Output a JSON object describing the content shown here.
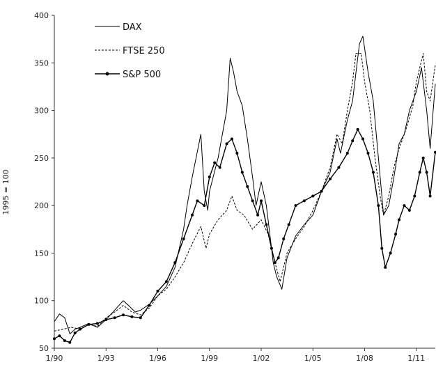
{
  "chart_data": {
    "type": "line",
    "title": "",
    "xlabel": "",
    "ylabel": "1995 = 100",
    "xlim": [
      1990.0,
      2012.1
    ],
    "ylim": [
      50,
      400
    ],
    "x_ticks": [
      1990,
      1993,
      1996,
      1999,
      2002,
      2005,
      2008,
      2011
    ],
    "x_tick_labels": [
      "1/90",
      "1/93",
      "1/96",
      "1/99",
      "1/02",
      "1/05",
      "1/08",
      "1/11"
    ],
    "y_ticks": [
      50,
      100,
      150,
      200,
      250,
      300,
      350,
      400
    ],
    "grid": false,
    "legend_position": "top-left",
    "series": [
      {
        "name": "DAX",
        "style": "solid",
        "color": "#000000",
        "x": [
          1990.0,
          1990.3,
          1990.6,
          1990.9,
          1991.2,
          1991.5,
          1992.0,
          1992.5,
          1993.0,
          1993.5,
          1994.0,
          1994.3,
          1994.7,
          1995.0,
          1995.5,
          1996.0,
          1996.5,
          1997.0,
          1997.5,
          1997.7,
          1998.0,
          1998.5,
          1998.7,
          1998.9,
          1999.0,
          1999.5,
          2000.0,
          2000.2,
          2000.4,
          2000.6,
          2000.9,
          2001.2,
          2001.5,
          2001.7,
          2002.0,
          2002.3,
          2002.5,
          2002.7,
          2002.9,
          2003.2,
          2003.5,
          2004.0,
          2004.5,
          2005.0,
          2005.5,
          2006.0,
          2006.4,
          2006.6,
          2007.0,
          2007.3,
          2007.5,
          2007.7,
          2007.9,
          2008.2,
          2008.5,
          2008.9,
          2009.1,
          2009.4,
          2009.7,
          2010.0,
          2010.3,
          2010.6,
          2011.0,
          2011.3,
          2011.6,
          2011.8,
          2012.1
        ],
        "y": [
          78,
          86,
          82,
          65,
          70,
          72,
          76,
          72,
          80,
          90,
          100,
          95,
          88,
          90,
          96,
          105,
          115,
          135,
          175,
          200,
          230,
          275,
          215,
          195,
          215,
          250,
          300,
          355,
          340,
          320,
          305,
          270,
          230,
          200,
          225,
          200,
          170,
          140,
          125,
          112,
          145,
          168,
          180,
          190,
          215,
          235,
          270,
          255,
          290,
          310,
          340,
          370,
          378,
          340,
          310,
          230,
          190,
          200,
          230,
          265,
          275,
          300,
          320,
          345,
          300,
          260,
          328
        ]
      },
      {
        "name": "FTSE 250",
        "style": "dashed",
        "color": "#000000",
        "x": [
          1990.0,
          1990.5,
          1991.0,
          1991.5,
          1992.0,
          1992.5,
          1993.0,
          1993.5,
          1994.0,
          1994.5,
          1995.0,
          1995.5,
          1996.0,
          1996.5,
          1997.0,
          1997.5,
          1998.0,
          1998.5,
          1998.8,
          1999.0,
          1999.5,
          2000.0,
          2000.3,
          2000.6,
          2001.0,
          2001.5,
          2002.0,
          2002.4,
          2002.8,
          2003.1,
          2003.5,
          2004.0,
          2004.5,
          2005.0,
          2005.5,
          2006.0,
          2006.4,
          2006.7,
          2007.0,
          2007.3,
          2007.5,
          2007.8,
          2008.0,
          2008.3,
          2008.6,
          2008.9,
          2009.1,
          2009.4,
          2009.7,
          2010.0,
          2010.4,
          2010.8,
          2011.0,
          2011.2,
          2011.4,
          2011.6,
          2011.8,
          2012.1
        ],
        "y": [
          68,
          70,
          72,
          70,
          75,
          73,
          82,
          88,
          95,
          88,
          85,
          92,
          105,
          112,
          125,
          140,
          160,
          178,
          155,
          170,
          185,
          195,
          210,
          195,
          190,
          175,
          185,
          170,
          140,
          120,
          150,
          165,
          178,
          195,
          215,
          240,
          275,
          265,
          300,
          330,
          360,
          360,
          330,
          300,
          250,
          210,
          190,
          210,
          240,
          260,
          280,
          305,
          330,
          345,
          360,
          320,
          310,
          348
        ]
      },
      {
        "name": "S&P 500",
        "style": "solid-markers",
        "color": "#000000",
        "x": [
          1990.0,
          1990.3,
          1990.6,
          1990.9,
          1991.2,
          1991.5,
          1992.0,
          1992.5,
          1993.0,
          1993.5,
          1994.0,
          1994.5,
          1995.0,
          1995.5,
          1996.0,
          1996.5,
          1997.0,
          1997.5,
          1998.0,
          1998.3,
          1998.7,
          1999.0,
          1999.3,
          1999.6,
          2000.0,
          2000.3,
          2000.6,
          2000.9,
          2001.2,
          2001.5,
          2001.8,
          2002.0,
          2002.3,
          2002.6,
          2002.8,
          2003.0,
          2003.3,
          2003.6,
          2004.0,
          2004.5,
          2005.0,
          2005.5,
          2006.0,
          2006.5,
          2007.0,
          2007.3,
          2007.6,
          2007.9,
          2008.2,
          2008.5,
          2008.8,
          2009.0,
          2009.2,
          2009.5,
          2009.8,
          2010.0,
          2010.3,
          2010.6,
          2010.9,
          2011.2,
          2011.4,
          2011.6,
          2011.8,
          2012.1
        ],
        "y": [
          60,
          63,
          58,
          56,
          66,
          70,
          75,
          76,
          80,
          82,
          85,
          83,
          82,
          95,
          110,
          120,
          140,
          165,
          190,
          205,
          200,
          230,
          245,
          240,
          265,
          270,
          255,
          235,
          220,
          205,
          190,
          205,
          180,
          155,
          140,
          145,
          165,
          180,
          200,
          205,
          210,
          215,
          228,
          240,
          255,
          268,
          280,
          270,
          255,
          235,
          200,
          155,
          135,
          150,
          170,
          185,
          200,
          195,
          210,
          235,
          250,
          235,
          210,
          256
        ]
      }
    ]
  }
}
